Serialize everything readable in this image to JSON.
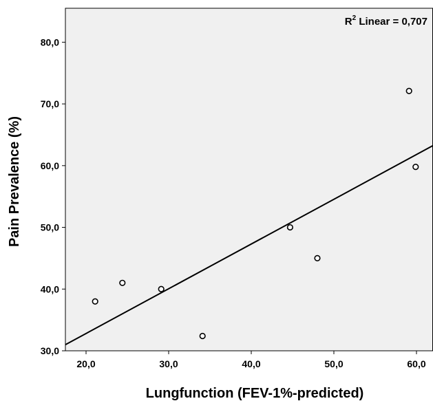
{
  "chart_data": {
    "type": "scatter",
    "xlabel": "Lungfunction (FEV-1%-predicted)",
    "ylabel": "Pain Prevalence (%)",
    "xlim": [
      17.5,
      62
    ],
    "ylim": [
      30,
      85.5
    ],
    "x_ticks": [
      "20,0",
      "30,0",
      "40,0",
      "50,0",
      "60,0"
    ],
    "x_tick_values": [
      20,
      30,
      40,
      50,
      60
    ],
    "y_ticks": [
      "30,0",
      "40,0",
      "50,0",
      "60,0",
      "70,0",
      "80,0"
    ],
    "y_tick_values": [
      30,
      40,
      50,
      60,
      70,
      80
    ],
    "points": [
      {
        "x": 21.1,
        "y": 38.0
      },
      {
        "x": 24.4,
        "y": 41.0
      },
      {
        "x": 29.1,
        "y": 40.0
      },
      {
        "x": 34.1,
        "y": 32.4
      },
      {
        "x": 44.7,
        "y": 50.0
      },
      {
        "x": 48.0,
        "y": 45.0
      },
      {
        "x": 59.1,
        "y": 72.1
      },
      {
        "x": 59.9,
        "y": 59.8
      }
    ],
    "fit_line": {
      "slope": 0.725,
      "intercept": 18.3
    },
    "annotation": {
      "prefix": "R",
      "superscript": "2",
      "suffix": " Linear = 0,707"
    },
    "grid": false,
    "plot_background": "#f0f0f0",
    "marker_color": "#000000",
    "line_color": "#000000"
  }
}
